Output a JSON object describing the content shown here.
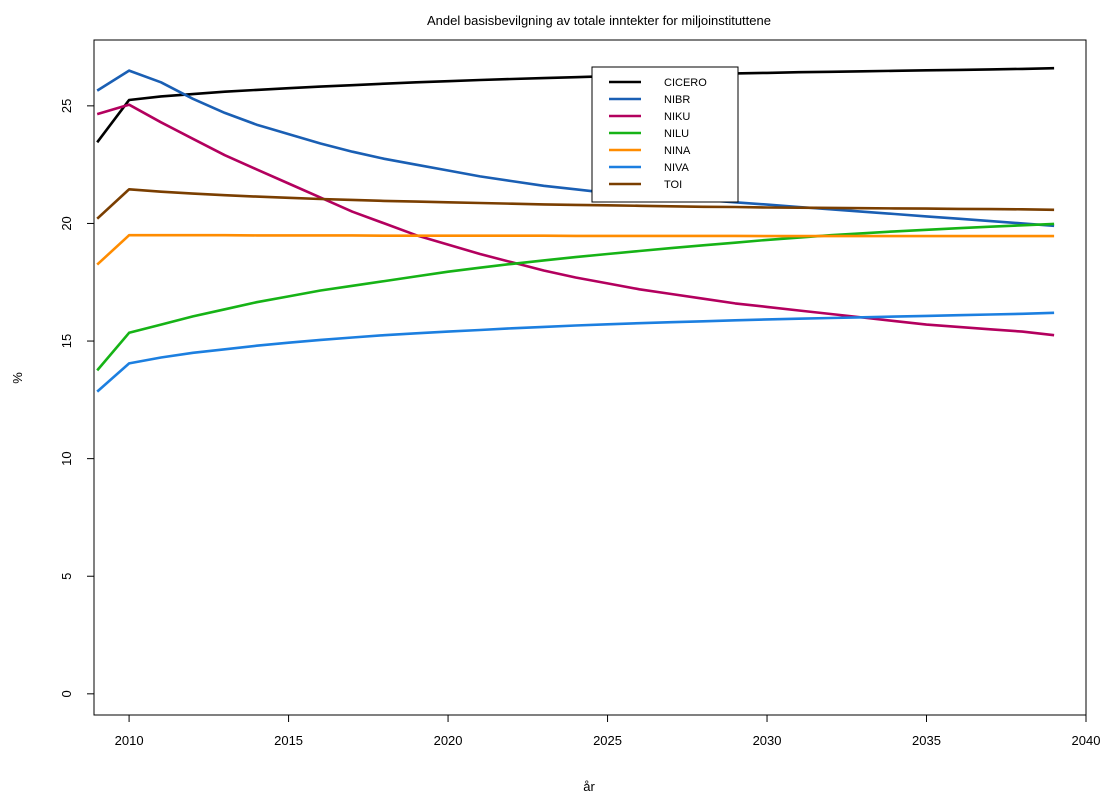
{
  "chart_data": {
    "type": "line",
    "title": "Andel basisbevilgning av totale inntekter for miljoinstituttene",
    "xlabel": "år",
    "ylabel": "%",
    "xlim": [
      2008.9,
      2040
    ],
    "ylim": [
      -0.9,
      27.8
    ],
    "xticks": [
      2010,
      2015,
      2020,
      2025,
      2030,
      2035,
      2040
    ],
    "yticks": [
      0,
      5,
      10,
      15,
      20,
      25
    ],
    "grid": false,
    "legend_position": "top-center",
    "x": [
      2009,
      2010,
      2011,
      2012,
      2013,
      2014,
      2015,
      2016,
      2017,
      2018,
      2019,
      2020,
      2021,
      2022,
      2023,
      2024,
      2025,
      2026,
      2027,
      2028,
      2029,
      2030,
      2031,
      2032,
      2033,
      2034,
      2035,
      2036,
      2037,
      2038,
      2039
    ],
    "series": [
      {
        "name": "CICERO",
        "color": "#000000",
        "values": [
          23.45,
          25.25,
          25.4,
          25.5,
          25.6,
          25.68,
          25.75,
          25.82,
          25.88,
          25.94,
          26.0,
          26.05,
          26.1,
          26.14,
          26.18,
          26.22,
          26.26,
          26.29,
          26.32,
          26.35,
          26.38,
          26.4,
          26.43,
          26.45,
          26.47,
          26.49,
          26.51,
          26.53,
          26.55,
          26.57,
          26.6
        ]
      },
      {
        "name": "NIBR",
        "color": "#1a5fb4",
        "values": [
          25.65,
          26.5,
          26.0,
          25.3,
          24.7,
          24.2,
          23.8,
          23.4,
          23.05,
          22.75,
          22.5,
          22.25,
          22.0,
          21.8,
          21.6,
          21.45,
          21.3,
          21.2,
          21.1,
          21.0,
          20.9,
          20.8,
          20.7,
          20.6,
          20.5,
          20.4,
          20.3,
          20.2,
          20.1,
          20.0,
          19.9
        ]
      },
      {
        "name": "NIKU",
        "color": "#b3005e",
        "values": [
          24.65,
          25.05,
          24.3,
          23.6,
          22.9,
          22.3,
          21.7,
          21.1,
          20.5,
          20.0,
          19.5,
          19.1,
          18.7,
          18.35,
          18.0,
          17.7,
          17.45,
          17.2,
          17.0,
          16.8,
          16.6,
          16.45,
          16.3,
          16.15,
          16.0,
          15.85,
          15.7,
          15.6,
          15.5,
          15.4,
          15.25
        ]
      },
      {
        "name": "NILU",
        "color": "#16b316",
        "values": [
          13.75,
          15.35,
          15.7,
          16.05,
          16.35,
          16.65,
          16.9,
          17.15,
          17.35,
          17.55,
          17.75,
          17.95,
          18.12,
          18.28,
          18.43,
          18.57,
          18.7,
          18.83,
          18.95,
          19.07,
          19.18,
          19.3,
          19.4,
          19.5,
          19.58,
          19.66,
          19.73,
          19.8,
          19.86,
          19.92,
          19.98
        ]
      },
      {
        "name": "NINA",
        "color": "#ff8c00",
        "values": [
          18.25,
          19.5,
          19.5,
          19.5,
          19.5,
          19.49,
          19.49,
          19.49,
          19.49,
          19.48,
          19.48,
          19.48,
          19.48,
          19.48,
          19.48,
          19.47,
          19.47,
          19.47,
          19.47,
          19.47,
          19.47,
          19.46,
          19.46,
          19.46,
          19.46,
          19.46,
          19.46,
          19.46,
          19.46,
          19.46,
          19.46
        ]
      },
      {
        "name": "NIVA",
        "color": "#1c7fe0",
        "values": [
          12.85,
          14.05,
          14.3,
          14.5,
          14.65,
          14.8,
          14.93,
          15.05,
          15.15,
          15.25,
          15.33,
          15.4,
          15.47,
          15.54,
          15.6,
          15.66,
          15.71,
          15.76,
          15.8,
          15.84,
          15.88,
          15.92,
          15.95,
          15.98,
          16.01,
          16.04,
          16.07,
          16.1,
          16.13,
          16.16,
          16.2
        ]
      },
      {
        "name": "TOI",
        "color": "#7a3e00",
        "values": [
          20.2,
          21.45,
          21.35,
          21.27,
          21.2,
          21.14,
          21.09,
          21.04,
          21.0,
          20.96,
          20.93,
          20.9,
          20.87,
          20.84,
          20.81,
          20.79,
          20.77,
          20.75,
          20.73,
          20.71,
          20.7,
          20.68,
          20.67,
          20.66,
          20.65,
          20.64,
          20.63,
          20.62,
          20.61,
          20.6,
          20.58
        ]
      }
    ]
  }
}
